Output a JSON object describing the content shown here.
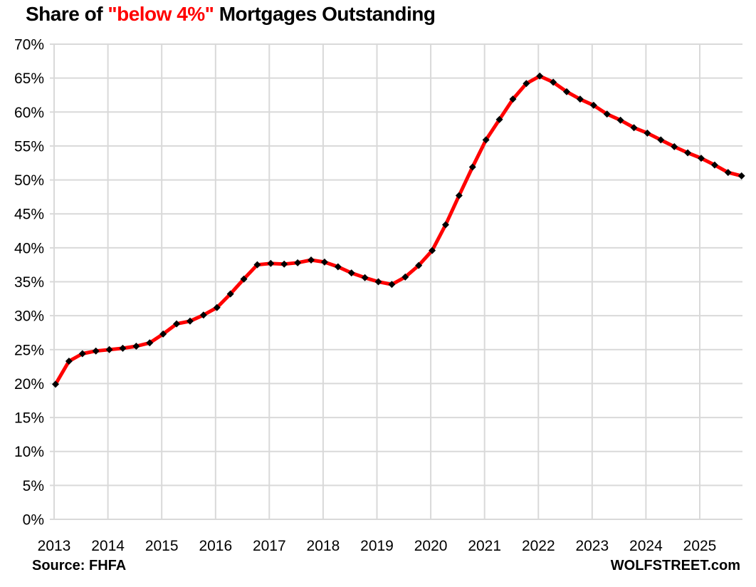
{
  "title": {
    "prefix": "Share of ",
    "highlight": "\"below 4%\"",
    "suffix": " Mortgages Outstanding",
    "highlight_color": "#ff0000"
  },
  "footer": {
    "source": "Source: FHFA",
    "brand": "WOLFSTREET.com"
  },
  "chart_data": {
    "type": "line",
    "title": "Share of \"below 4%\" Mortgages Outstanding",
    "xlabel": "",
    "ylabel": "",
    "x_tick_labels": [
      "2013",
      "2014",
      "2015",
      "2016",
      "2017",
      "2018",
      "2019",
      "2020",
      "2021",
      "2022",
      "2023",
      "2024",
      "2025"
    ],
    "y_ticks": [
      0,
      5,
      10,
      15,
      20,
      25,
      30,
      35,
      40,
      45,
      50,
      55,
      60,
      65,
      70
    ],
    "y_tick_suffix": "%",
    "ylim": [
      0,
      70
    ],
    "grid": true,
    "legend": false,
    "grid_color": "#d9d9d9",
    "line_color": "#ff0000",
    "marker": "diamond",
    "marker_color": "#000000",
    "frequency": "quarterly",
    "x_start": "2013-Q1",
    "x_end": "2025-Q4",
    "series": [
      {
        "name": "Share of below-4% mortgages outstanding (%)",
        "values": [
          19.9,
          23.3,
          24.4,
          24.8,
          25.0,
          25.2,
          25.5,
          26.0,
          27.3,
          28.8,
          29.2,
          30.1,
          31.2,
          33.2,
          35.4,
          37.5,
          37.7,
          37.6,
          37.8,
          38.2,
          37.9,
          37.2,
          36.3,
          35.6,
          35.0,
          34.6,
          35.7,
          37.4,
          39.6,
          43.4,
          47.7,
          51.9,
          55.9,
          58.9,
          61.9,
          64.2,
          65.3,
          64.4,
          63.0,
          61.9,
          61.0,
          59.7,
          58.8,
          57.7,
          56.9,
          55.9,
          54.9,
          54.0,
          53.2,
          52.2,
          51.1,
          50.6
        ]
      }
    ]
  }
}
